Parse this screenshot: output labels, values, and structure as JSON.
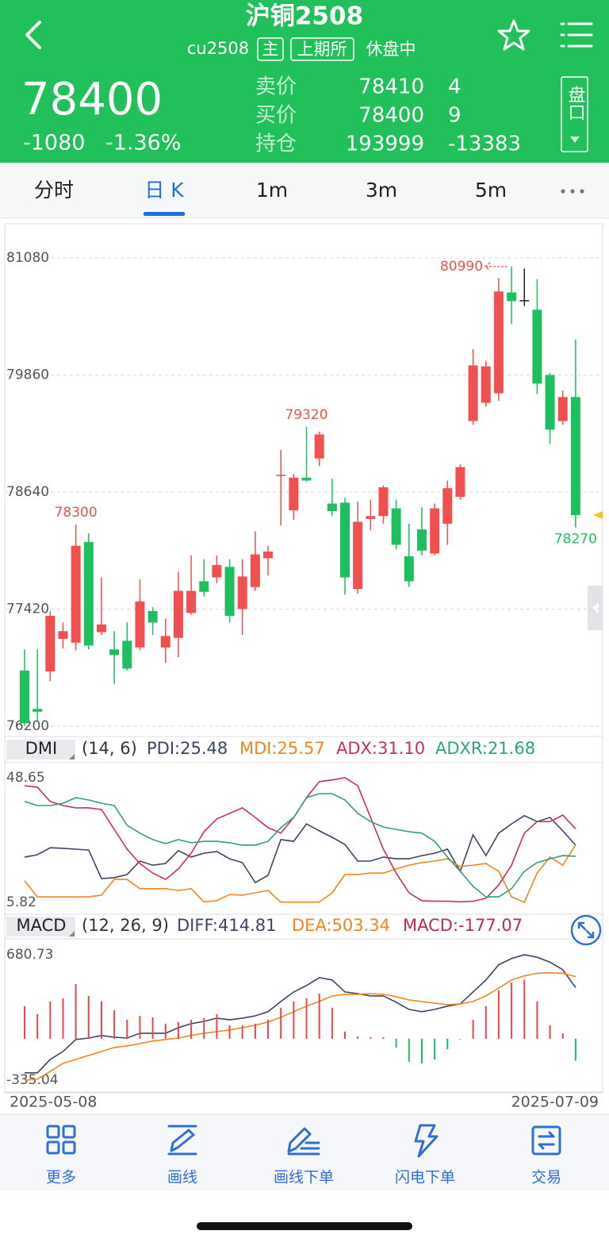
{
  "header": {
    "title": "沪铜2508",
    "code": "cu2508",
    "badges": [
      "主",
      "上期所"
    ],
    "status": "休盘中"
  },
  "quote": {
    "price": "78400",
    "change": "-1080",
    "change_pct": "-1.36%",
    "rows": [
      {
        "label": "卖价",
        "price": "78410",
        "qty": "4"
      },
      {
        "label": "买价",
        "price": "78400",
        "qty": "9"
      },
      {
        "label": "持仓",
        "price": "193999",
        "qty": "-13383"
      }
    ],
    "panel_button": "盘口"
  },
  "tabs": [
    "分时",
    "日 K",
    "1m",
    "3m",
    "5m"
  ],
  "active_tab": 1,
  "chart_data": [
    {
      "type": "candlestick",
      "ylim": [
        76200,
        81080
      ],
      "yticks": [
        76200,
        77420,
        78640,
        79860,
        81080
      ],
      "grid": true,
      "up_color": "#f0504f",
      "down_color": "#1dbf5e",
      "flat_color": "#222222",
      "open": [
        76780,
        76380,
        76770,
        77110,
        77070,
        78120,
        77180,
        77000,
        77090,
        77020,
        77400,
        77020,
        77120,
        77380,
        77710,
        77750,
        77860,
        77420,
        77650,
        77950,
        78810,
        78450,
        78790,
        78990,
        78520,
        78530,
        77630,
        78360,
        78390,
        78470,
        77970,
        78250,
        78000,
        78310,
        78590,
        79380,
        79570,
        79670,
        80720,
        80640,
        80540,
        79860,
        79380,
        79630
      ],
      "high": [
        77000,
        77000,
        77400,
        77280,
        78300,
        78210,
        77750,
        77190,
        77280,
        77730,
        77440,
        77320,
        77810,
        77980,
        77940,
        77980,
        77940,
        77940,
        78230,
        78080,
        79080,
        78830,
        79320,
        79270,
        78780,
        78580,
        78540,
        78560,
        78710,
        78560,
        78310,
        78480,
        78520,
        78760,
        78930,
        80130,
        80010,
        80870,
        80990,
        80970,
        80860,
        79880,
        79700,
        80230
      ],
      "low": [
        76200,
        76240,
        76670,
        77010,
        76990,
        77000,
        77150,
        76640,
        76780,
        76990,
        77150,
        76860,
        76920,
        77360,
        77550,
        77690,
        77280,
        77150,
        77610,
        77770,
        78290,
        78350,
        78750,
        78910,
        78390,
        77570,
        77580,
        78240,
        78310,
        78040,
        77650,
        77980,
        77980,
        78090,
        78560,
        79340,
        79530,
        79590,
        80390,
        80580,
        79660,
        79140,
        79340,
        78270
      ],
      "close": [
        76230,
        76350,
        77350,
        77190,
        78080,
        77040,
        77260,
        76940,
        76800,
        77500,
        77280,
        77140,
        77610,
        77610,
        77600,
        77880,
        77350,
        77760,
        77990,
        78020,
        78820,
        78790,
        78760,
        79240,
        78440,
        77750,
        78330,
        78390,
        78690,
        78090,
        77710,
        78030,
        78470,
        78680,
        78900,
        79960,
        79950,
        80730,
        80630,
        80640,
        79770,
        79290,
        79630,
        78400
      ],
      "date_labels": [
        "2025-05-08",
        "2025-07-09"
      ]
    },
    {
      "type": "line",
      "title": "DMI",
      "params": "(14, 6)",
      "ylim": [
        5.82,
        48.65
      ],
      "yticks": [
        5.82,
        48.65
      ],
      "series": [
        {
          "name": "PDI:25.48",
          "color": "#3d4566",
          "values": [
            21.4,
            22.2,
            24.6,
            24.4,
            24.1,
            23.8,
            14,
            14.3,
            15.4,
            20,
            18.6,
            19.2,
            23.6,
            21.4,
            22.7,
            23.3,
            20.8,
            19.5,
            12.6,
            15.1,
            27.4,
            26.8,
            32.8,
            30.4,
            28.2,
            25.7,
            20,
            20,
            21.4,
            20.8,
            20.8,
            21.9,
            22.7,
            24.1,
            16.5,
            29,
            21.9,
            29.6,
            32.8,
            35.6,
            33.6,
            35,
            30.4,
            25.48
          ]
        },
        {
          "name": "MDI:25.57",
          "color": "#f28522",
          "values": [
            13.2,
            7.7,
            7.7,
            7.7,
            7.7,
            7.7,
            8.3,
            13.7,
            13.7,
            10.5,
            10.5,
            10.5,
            9.9,
            10.5,
            6,
            6.4,
            8.5,
            8.3,
            9.1,
            9.9,
            5.9,
            5.9,
            5.9,
            5.9,
            9.1,
            15.4,
            15.4,
            15.9,
            15.9,
            17.3,
            18.6,
            19.5,
            20,
            20.8,
            18.1,
            18.6,
            19.2,
            16.5,
            7.7,
            5.82,
            15.9,
            21.4,
            18.6,
            25.57
          ]
        },
        {
          "name": "ADX:31.10",
          "color": "#cc2f5c",
          "values": [
            45.9,
            45.4,
            40.5,
            39.1,
            38.3,
            38.3,
            37.7,
            30.9,
            24.1,
            19.2,
            15.9,
            13.7,
            17.3,
            22.7,
            30.1,
            34.5,
            36.4,
            38.3,
            35,
            31.5,
            29.6,
            35,
            41.8,
            47.3,
            47.9,
            48.65,
            45.9,
            35,
            24.1,
            15.9,
            9.1,
            6.4,
            6.2,
            6.2,
            6,
            6.2,
            7.2,
            11.8,
            18.6,
            29.6,
            33.6,
            33.6,
            35.8,
            31.1
          ]
        },
        {
          "name": "ADXR:21.68",
          "color": "#2f9f7f",
          "values": [
            40.5,
            39.1,
            39.1,
            39.9,
            41.8,
            41,
            39.9,
            39.1,
            32.3,
            29.6,
            27.4,
            26,
            27.4,
            26.3,
            26.8,
            26.8,
            26.3,
            25.5,
            25.5,
            26.8,
            31.5,
            35,
            41.8,
            43.2,
            43.2,
            41,
            36.4,
            33.6,
            31.7,
            30.9,
            30.1,
            29.6,
            26.8,
            21.4,
            16.5,
            11.3,
            7.7,
            7.7,
            10.5,
            16.5,
            19.5,
            20.8,
            21.9,
            21.68
          ]
        }
      ]
    },
    {
      "type": "macd",
      "title": "MACD",
      "params": "(12, 26, 9)",
      "ylim": [
        -335.04,
        680.73
      ],
      "yticks": [
        -335.04,
        680.73
      ],
      "series": [
        {
          "name": "DIFF:414.81",
          "kind": "line",
          "color": "#3d4566",
          "values": [
            -276,
            -276,
            -167,
            -103,
            -6,
            6,
            26,
            13,
            6,
            45,
            45,
            45,
            90,
            122,
            141,
            167,
            154,
            167,
            186,
            219,
            302,
            379,
            431,
            495,
            476,
            379,
            366,
            347,
            347,
            296,
            238,
            219,
            238,
            264,
            283,
            379,
            476,
            600,
            650,
            680.73,
            660,
            620,
            560,
            414.81
          ]
        },
        {
          "name": "DEA:503.34",
          "kind": "line",
          "color": "#f28522",
          "values": [
            -335.04,
            -328,
            -264,
            -199,
            -167,
            -135,
            -103,
            -71,
            -58,
            -39,
            -19,
            -6,
            6,
            26,
            45,
            58,
            71,
            90,
            109,
            135,
            174,
            219,
            264,
            302,
            347,
            360,
            360,
            366,
            360,
            341,
            315,
            302,
            289,
            276,
            283,
            302,
            347,
            411,
            476,
            510,
            530,
            535,
            530,
            503.34
          ]
        },
        {
          "name": "MACD:-177.07",
          "kind": "bar",
          "color": "#c0285a",
          "up_color": "#e8474b",
          "down_color": "#1dbf5e",
          "values": [
            264,
            199,
            302,
            328,
            444,
            347,
            302,
            231,
            154,
            186,
            174,
            122,
            135,
            154,
            167,
            199,
            109,
            109,
            122,
            154,
            251,
            302,
            328,
            366,
            251,
            58,
            19,
            13,
            13,
            -71,
            -186,
            -199,
            -167,
            -84,
            -6,
            154,
            264,
            392,
            456,
            476,
            302,
            109,
            45,
            -177.07
          ]
        }
      ]
    }
  ],
  "toolbar": [
    "更多",
    "画线",
    "画线下单",
    "闪电下单",
    "交易"
  ]
}
